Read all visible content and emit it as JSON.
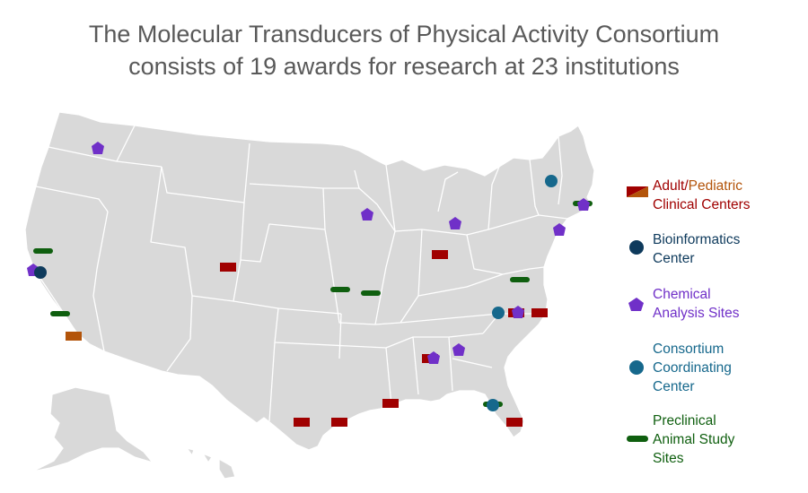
{
  "title": {
    "line1": "The Molecular Transducers of Physical Activity Consortium",
    "line2": "consists of 19 awards for research at 23 institutions"
  },
  "colors": {
    "land": "#d9d9d9",
    "border": "#ffffff",
    "adult": "#a00000",
    "pediatric": "#b3540a",
    "bioinformatics": "#0e3a5c",
    "chemical": "#7030c8",
    "coordinating": "#16688c",
    "preclinical": "#0f5f0f",
    "title": "#595959"
  },
  "legend": {
    "clinical": {
      "adult": "Adult",
      "slash": "/",
      "pediatric": "Pediatric",
      "line2": "Clinical Centers"
    },
    "bioinformatics": {
      "line1": "Bioinformatics",
      "line2": "Center"
    },
    "chemical": {
      "line1": "Chemical",
      "line2": "Analysis Sites"
    },
    "coordinating": {
      "line1": "Consortium",
      "line2": "Coordinating",
      "line3": "Center"
    },
    "preclinical": {
      "line1": "Preclinical",
      "line2": "Animal Study",
      "line3": "Sites"
    }
  },
  "sites": {
    "adult_clinical_count": 11,
    "pediatric_clinical_count": 1,
    "bioinformatics_count": 1,
    "chemical_count": 9,
    "coordinating_count": 3,
    "preclinical_count": 7
  }
}
